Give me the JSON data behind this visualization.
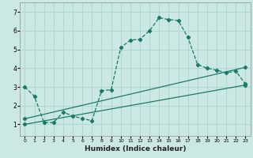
{
  "xlabel": "Humidex (Indice chaleur)",
  "background_color": "#cce8e4",
  "grid_color": "#b0d8d2",
  "line_color": "#1a7a6a",
  "xlim": [
    -0.5,
    23.5
  ],
  "ylim": [
    0.4,
    7.5
  ],
  "xticks": [
    0,
    1,
    2,
    3,
    4,
    5,
    6,
    7,
    8,
    9,
    10,
    11,
    12,
    13,
    14,
    15,
    16,
    17,
    18,
    19,
    20,
    21,
    22,
    23
  ],
  "yticks": [
    1,
    2,
    3,
    4,
    5,
    6,
    7
  ],
  "series_main": {
    "x": [
      0,
      1,
      2,
      3,
      4,
      5,
      6,
      7,
      8,
      9,
      10,
      11,
      12,
      13,
      14,
      15,
      16,
      17,
      18,
      19,
      20,
      21,
      22,
      23
    ],
    "y": [
      3.0,
      2.5,
      1.1,
      1.1,
      1.65,
      1.45,
      1.3,
      1.2,
      2.8,
      2.85,
      5.1,
      5.5,
      5.55,
      6.0,
      6.7,
      6.6,
      6.55,
      5.65,
      4.2,
      4.0,
      3.9,
      3.75,
      3.85,
      3.15
    ]
  },
  "series_line1": {
    "x": [
      0,
      23
    ],
    "y": [
      1.0,
      3.1
    ]
  },
  "series_line2": {
    "x": [
      0,
      23
    ],
    "y": [
      1.3,
      4.05
    ]
  }
}
